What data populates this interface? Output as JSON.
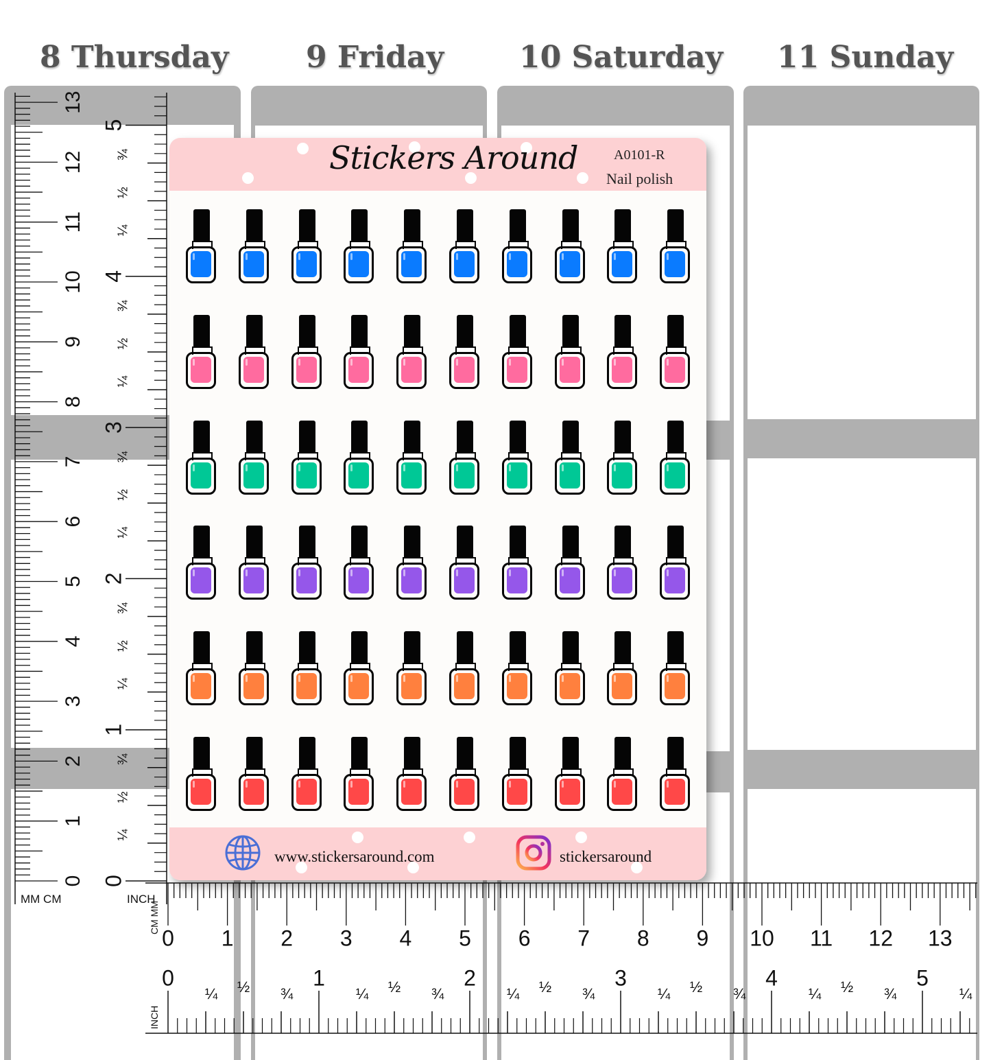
{
  "days": [
    {
      "label": "8 Thursday"
    },
    {
      "label": "9 Friday"
    },
    {
      "label": "10 Saturday"
    },
    {
      "label": "11 Sunday"
    }
  ],
  "sheet": {
    "brand": "Stickers Around",
    "code": "A0101-R",
    "theme": "Nail polish",
    "website": "www.stickersaround.com",
    "instagram": "stickersaround",
    "rows": [
      {
        "color": "#0a7bff"
      },
      {
        "color": "#ff6b9f"
      },
      {
        "color": "#00c896"
      },
      {
        "color": "#9557ea"
      },
      {
        "color": "#ff803e"
      },
      {
        "color": "#ff4848"
      }
    ],
    "bottles_per_row": 10
  },
  "rulers": {
    "vertical_unit_labels": {
      "mm_cm": "MM CM",
      "inch": "INCH"
    },
    "vertical_cm": [
      "0",
      "1",
      "2",
      "3",
      "4",
      "5",
      "6",
      "7",
      "8",
      "9",
      "10",
      "11",
      "12",
      "13"
    ],
    "vertical_inch": [
      "0",
      "1",
      "2",
      "3",
      "4",
      "5"
    ],
    "horizontal_unit_labels": {
      "cm": "CM MM",
      "inch": "INCH"
    },
    "horizontal_cm": [
      "0",
      "1",
      "2",
      "3",
      "4",
      "5",
      "6",
      "7",
      "8",
      "9",
      "10",
      "11",
      "12",
      "13"
    ],
    "horizontal_inch": [
      "0",
      "1",
      "2",
      "3",
      "4",
      "5"
    ],
    "fraction_labels": {
      "quarter": "¼",
      "half": "½",
      "three_quarter": "¾"
    }
  }
}
